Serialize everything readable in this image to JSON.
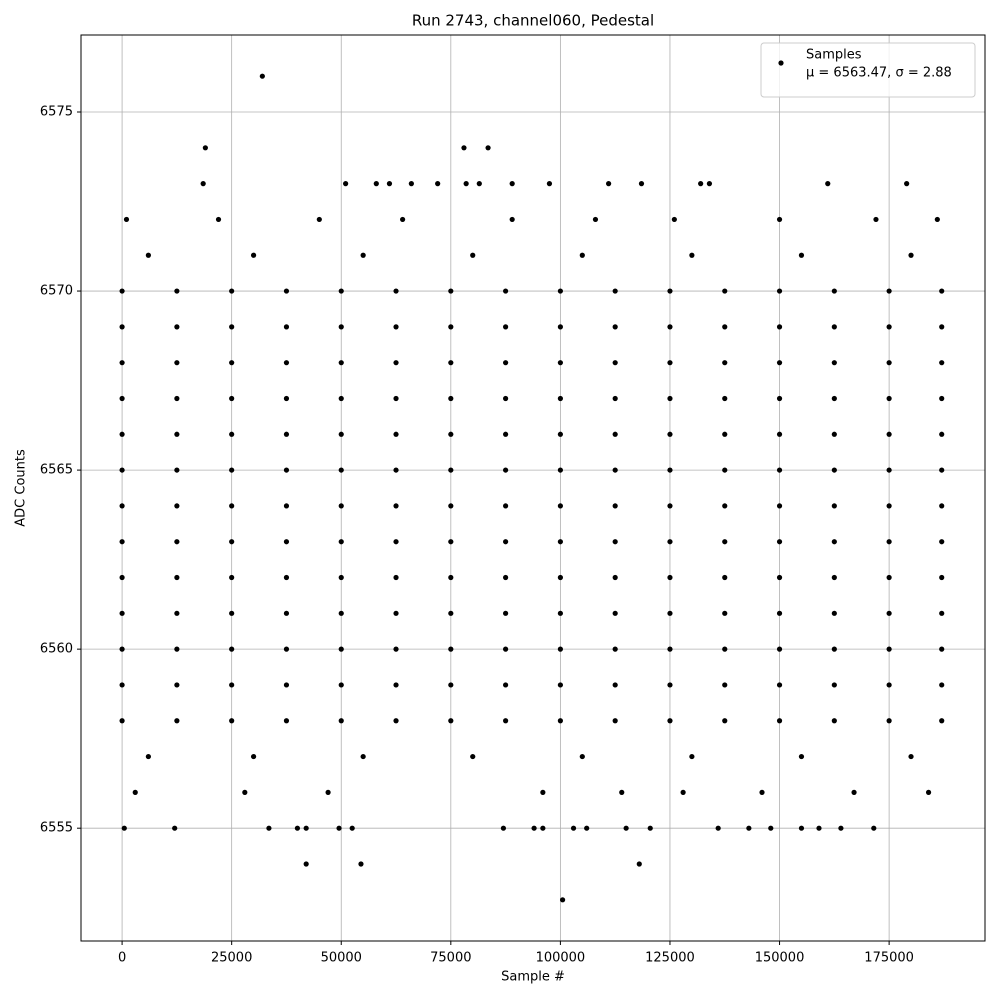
{
  "chart_data": {
    "type": "scatter",
    "title": "Run 2743, channel060, Pedestal",
    "xlabel": "Sample #",
    "ylabel": "ADC Counts",
    "legend_loc": "upper right",
    "grid": true,
    "series": [
      {
        "name": "Samples",
        "stats": "μ = 6563.47, σ = 2.88",
        "color": "#000000",
        "x": [
          0,
          12500,
          25000,
          37500,
          50000,
          62500,
          75000,
          87500,
          100000,
          112500,
          125000,
          137500,
          150000,
          162500,
          175000,
          187000,
          0,
          12500,
          25000,
          37500,
          50000,
          62500,
          75000,
          87500,
          100000,
          112500,
          125000,
          137500,
          150000,
          162500,
          175000,
          187000,
          0,
          12500,
          25000,
          37500,
          50000,
          62500,
          75000,
          87500,
          100000,
          112500,
          125000,
          137500,
          150000,
          162500,
          175000,
          187000,
          0,
          12500,
          25000,
          37500,
          50000,
          62500,
          75000,
          87500,
          100000,
          112500,
          125000,
          137500,
          150000,
          162500,
          175000,
          187000,
          0,
          12500,
          25000,
          37500,
          50000,
          62500,
          75000,
          87500,
          100000,
          112500,
          125000,
          137500,
          150000,
          162500,
          175000,
          187000,
          0,
          12500,
          25000,
          37500,
          50000,
          62500,
          75000,
          87500,
          100000,
          112500,
          125000,
          137500,
          150000,
          162500,
          175000,
          187000,
          0,
          12500,
          25000,
          37500,
          50000,
          62500,
          75000,
          87500,
          100000,
          112500,
          125000,
          137500,
          150000,
          162500,
          175000,
          187000,
          0,
          12500,
          25000,
          37500,
          50000,
          62500,
          75000,
          87500,
          100000,
          112500,
          125000,
          137500,
          150000,
          162500,
          175000,
          187000,
          0,
          12500,
          25000,
          37500,
          50000,
          62500,
          75000,
          87500,
          100000,
          112500,
          125000,
          137500,
          150000,
          162500,
          175000,
          187000,
          0,
          12500,
          25000,
          37500,
          50000,
          62500,
          75000,
          87500,
          100000,
          112500,
          125000,
          137500,
          150000,
          162500,
          175000,
          187000,
          0,
          12500,
          25000,
          37500,
          50000,
          62500,
          75000,
          87500,
          100000,
          112500,
          125000,
          137500,
          150000,
          162500,
          175000,
          187000,
          0,
          12500,
          25000,
          37500,
          50000,
          62500,
          75000,
          87500,
          100000,
          112500,
          125000,
          137500,
          150000,
          162500,
          175000,
          187000,
          0,
          12500,
          25000,
          37500,
          50000,
          62500,
          75000,
          87500,
          100000,
          112500,
          125000,
          137500,
          150000,
          162500,
          175000,
          187000,
          6000,
          30000,
          55000,
          80000,
          105000,
          130000,
          155000,
          180000,
          6000,
          30000,
          55000,
          80000,
          105000,
          130000,
          155000,
          180000,
          3000,
          28000,
          47000,
          96000,
          114000,
          128000,
          146000,
          167000,
          184000,
          1000,
          22000,
          45000,
          64000,
          89000,
          108000,
          126000,
          150000,
          172000,
          186000,
          32000,
          19000,
          78000,
          83500,
          18500,
          51000,
          58000,
          61000,
          66000,
          72000,
          78500,
          81500,
          89000,
          97500,
          111000,
          118500,
          132000,
          134000,
          161000,
          179000,
          500,
          12000,
          33500,
          40000,
          42000,
          49500,
          52500,
          87000,
          94000,
          96000,
          103000,
          106000,
          115000,
          120500,
          136000,
          143000,
          148000,
          155000,
          159000,
          164000,
          171500,
          42000,
          54500,
          118000,
          100500
        ],
        "y": [
          6558,
          6558,
          6558,
          6558,
          6558,
          6558,
          6558,
          6558,
          6558,
          6558,
          6558,
          6558,
          6558,
          6558,
          6558,
          6558,
          6559,
          6559,
          6559,
          6559,
          6559,
          6559,
          6559,
          6559,
          6559,
          6559,
          6559,
          6559,
          6559,
          6559,
          6559,
          6559,
          6560,
          6560,
          6560,
          6560,
          6560,
          6560,
          6560,
          6560,
          6560,
          6560,
          6560,
          6560,
          6560,
          6560,
          6560,
          6560,
          6561,
          6561,
          6561,
          6561,
          6561,
          6561,
          6561,
          6561,
          6561,
          6561,
          6561,
          6561,
          6561,
          6561,
          6561,
          6561,
          6562,
          6562,
          6562,
          6562,
          6562,
          6562,
          6562,
          6562,
          6562,
          6562,
          6562,
          6562,
          6562,
          6562,
          6562,
          6562,
          6563,
          6563,
          6563,
          6563,
          6563,
          6563,
          6563,
          6563,
          6563,
          6563,
          6563,
          6563,
          6563,
          6563,
          6563,
          6563,
          6564,
          6564,
          6564,
          6564,
          6564,
          6564,
          6564,
          6564,
          6564,
          6564,
          6564,
          6564,
          6564,
          6564,
          6564,
          6564,
          6565,
          6565,
          6565,
          6565,
          6565,
          6565,
          6565,
          6565,
          6565,
          6565,
          6565,
          6565,
          6565,
          6565,
          6565,
          6565,
          6566,
          6566,
          6566,
          6566,
          6566,
          6566,
          6566,
          6566,
          6566,
          6566,
          6566,
          6566,
          6566,
          6566,
          6566,
          6566,
          6567,
          6567,
          6567,
          6567,
          6567,
          6567,
          6567,
          6567,
          6567,
          6567,
          6567,
          6567,
          6567,
          6567,
          6567,
          6567,
          6568,
          6568,
          6568,
          6568,
          6568,
          6568,
          6568,
          6568,
          6568,
          6568,
          6568,
          6568,
          6568,
          6568,
          6568,
          6568,
          6569,
          6569,
          6569,
          6569,
          6569,
          6569,
          6569,
          6569,
          6569,
          6569,
          6569,
          6569,
          6569,
          6569,
          6569,
          6569,
          6570,
          6570,
          6570,
          6570,
          6570,
          6570,
          6570,
          6570,
          6570,
          6570,
          6570,
          6570,
          6570,
          6570,
          6570,
          6570,
          6557,
          6557,
          6557,
          6557,
          6557,
          6557,
          6557,
          6557,
          6571,
          6571,
          6571,
          6571,
          6571,
          6571,
          6571,
          6571,
          6556,
          6556,
          6556,
          6556,
          6556,
          6556,
          6556,
          6556,
          6556,
          6572,
          6572,
          6572,
          6572,
          6572,
          6572,
          6572,
          6572,
          6572,
          6572,
          6576,
          6574,
          6574,
          6574,
          6573,
          6573,
          6573,
          6573,
          6573,
          6573,
          6573,
          6573,
          6573,
          6573,
          6573,
          6573,
          6573,
          6573,
          6573,
          6573,
          6555,
          6555,
          6555,
          6555,
          6555,
          6555,
          6555,
          6555,
          6555,
          6555,
          6555,
          6555,
          6555,
          6555,
          6555,
          6555,
          6555,
          6555,
          6555,
          6555,
          6555,
          6554,
          6554,
          6554,
          6553
        ]
      }
    ],
    "xlim": [
      -9375,
      196875
    ],
    "xticks": [
      0,
      25000,
      50000,
      75000,
      100000,
      125000,
      150000,
      175000
    ],
    "ylim": [
      6551.85,
      6577.15
    ],
    "yticks": [
      6555,
      6560,
      6565,
      6570,
      6575
    ]
  }
}
